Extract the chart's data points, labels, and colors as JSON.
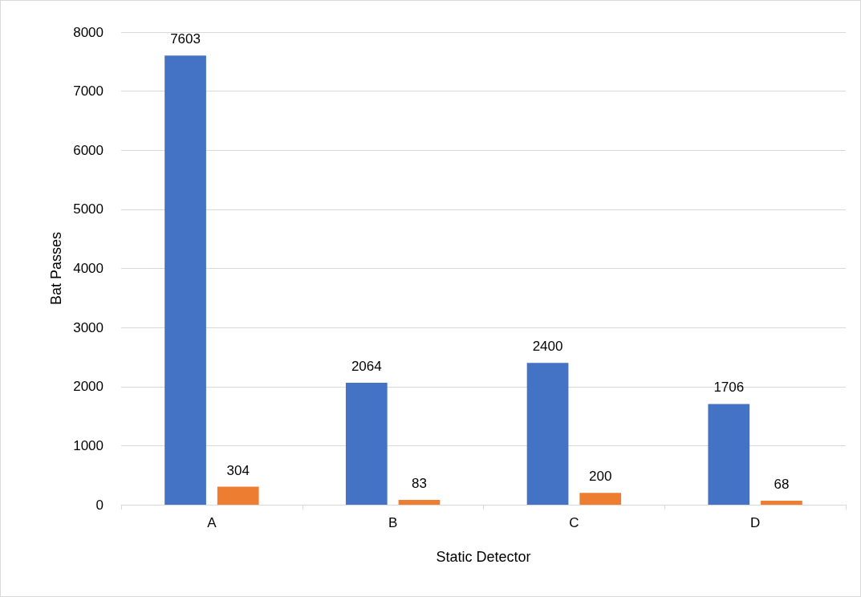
{
  "chart_data": {
    "type": "bar",
    "xlabel": "Static Detector",
    "ylabel": "Bat Passes",
    "categories": [
      "A",
      "B",
      "C",
      "D"
    ],
    "series": [
      {
        "color": "#4472c4",
        "values": [
          7603,
          2064,
          2400,
          1706
        ]
      },
      {
        "color": "#ed7d31",
        "values": [
          304,
          83,
          200,
          68
        ]
      }
    ],
    "ylim": [
      0,
      8000
    ],
    "yticks": [
      0,
      1000,
      2000,
      3000,
      4000,
      5000,
      6000,
      7000,
      8000
    ],
    "grid": "y",
    "data_labels": true
  }
}
